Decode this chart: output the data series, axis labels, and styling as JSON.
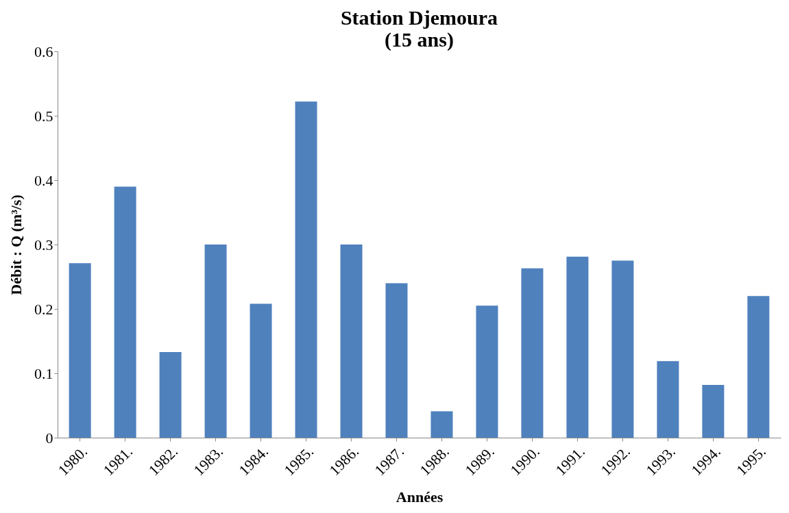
{
  "chart_data": {
    "type": "bar",
    "title": "Station Djemoura\n(15 ans)",
    "xlabel": "Années",
    "ylabel": "Débit : Q (m³/s)",
    "categories": [
      "1980.",
      "1981.",
      "1982.",
      "1983.",
      "1984.",
      "1985.",
      "1986.",
      "1987.",
      "1988.",
      "1989.",
      "1990.",
      "1991.",
      "1992.",
      "1993.",
      "1994.",
      "1995."
    ],
    "values": [
      0.271,
      0.39,
      0.133,
      0.3,
      0.208,
      0.522,
      0.3,
      0.24,
      0.041,
      0.205,
      0.263,
      0.281,
      0.275,
      0.119,
      0.082,
      0.22
    ],
    "color": "#4f81bd",
    "ylim": [
      0,
      0.6
    ],
    "yticks": [
      0,
      0.1,
      0.2,
      0.3,
      0.4,
      0.5,
      0.6
    ],
    "grid": false
  }
}
